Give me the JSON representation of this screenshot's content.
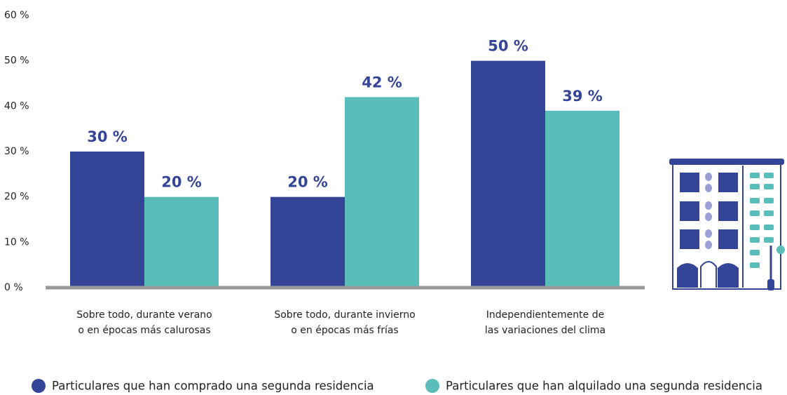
{
  "chart_data": {
    "type": "bar",
    "categories": [
      "Sobre todo, durante verano o en épocas más calurosas",
      "Sobre todo, durante invierno o en épocas más frías",
      "Independientemente de las variaciones del clima"
    ],
    "series": [
      {
        "name": "Particulares que han comprado una segunda residencia",
        "color": "#344496",
        "values": [
          30,
          20,
          50
        ],
        "value_labels": [
          "30 %",
          "20 %",
          "50 %"
        ]
      },
      {
        "name": "Particulares que han alquilado una segunda residencia",
        "color": "#5bbdb9",
        "values": [
          20,
          42,
          39
        ],
        "value_labels": [
          "20 %",
          "42 %",
          "39 %"
        ]
      }
    ],
    "ylim": [
      0,
      60
    ],
    "yticks": [
      {
        "value": 0,
        "label": "0 %"
      },
      {
        "value": 10,
        "label": "10 %"
      },
      {
        "value": 20,
        "label": "20 %"
      },
      {
        "value": 30,
        "label": "30 %"
      },
      {
        "value": 40,
        "label": "40 %"
      },
      {
        "value": 50,
        "label": "50 %"
      },
      {
        "value": 60,
        "label": "60 %"
      }
    ],
    "grid": false
  }
}
